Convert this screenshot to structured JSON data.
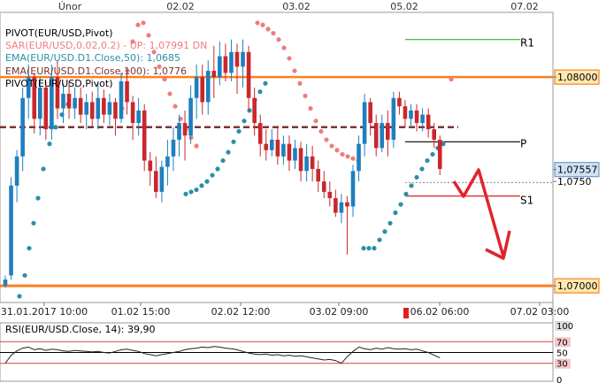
{
  "chart_data": {
    "type": "candlestick",
    "instrument": "EUR/USD",
    "colors": {
      "bull": "#1f7fbe",
      "bear": "#c8282d",
      "sar": "#ef7d7d",
      "ema50": "#2b8fa8",
      "ema100": "#7a3535",
      "level_orange": "#ff7f1f",
      "r1": "#2fb52f",
      "s1": "#d92020",
      "arrow": "#e0242d",
      "price_box": "#ffe8b0",
      "current_box": "#cfe3f5"
    },
    "top_axis": {
      "labels": [
        "Únor",
        "02.02",
        "03.02",
        "05.02",
        "07.02"
      ],
      "label_x": [
        79,
        204,
        335,
        457,
        593
      ]
    },
    "x_axis": {
      "labels": [
        "31.01.2017 10:00",
        "01.02 15:00",
        "02.02 12:00",
        "03.02 09:00",
        "06.02 06:00",
        "07.02 03:00"
      ],
      "label_x": [
        50,
        159,
        272,
        383,
        497,
        610
      ]
    },
    "y_axis": {
      "range": [
        1.0692,
        1.0831
      ]
    },
    "price_tags": [
      {
        "label": "1,08000",
        "price": 1.08,
        "style": "orange"
      },
      {
        "label": "1,07557",
        "price": 1.07557,
        "style": "current"
      },
      {
        "label": "1,0750",
        "price": 1.075,
        "style": "plain"
      },
      {
        "label": "1,07000",
        "price": 1.07,
        "style": "orange"
      }
    ],
    "levels": {
      "orange_upper": 1.08,
      "orange_lower": 1.07,
      "ema100": 1.0776,
      "pivot": 1.0769,
      "r1": 1.0818,
      "s1": 1.0743,
      "current_dashed": 1.07495
    },
    "level_labels": {
      "r1": "R1",
      "pivot": "P",
      "s1": "S1"
    },
    "candles": [
      [
        1.07,
        1.0703,
        1.0699,
        1.0705
      ],
      [
        1.0705,
        1.0748,
        1.0703,
        1.0752
      ],
      [
        1.0748,
        1.0762,
        1.074,
        1.0765
      ],
      [
        1.0762,
        1.079,
        1.0755,
        1.0795
      ],
      [
        1.079,
        1.08,
        1.078,
        1.0806
      ],
      [
        1.08,
        1.078,
        1.0773,
        1.0802
      ],
      [
        1.078,
        1.0795,
        1.0772,
        1.08
      ],
      [
        1.0795,
        1.0775,
        1.077,
        1.0798
      ],
      [
        1.0775,
        1.08,
        1.077,
        1.0806
      ],
      [
        1.08,
        1.0785,
        1.078,
        1.0808
      ],
      [
        1.0785,
        1.0792,
        1.0778,
        1.0797
      ],
      [
        1.0792,
        1.0785,
        1.078,
        1.0798
      ],
      [
        1.0785,
        1.079,
        1.078,
        1.0795
      ],
      [
        1.079,
        1.0782,
        1.0778,
        1.0795
      ],
      [
        1.0782,
        1.0788,
        1.0775,
        1.0792
      ],
      [
        1.0788,
        1.078,
        1.0776,
        1.0793
      ],
      [
        1.078,
        1.079,
        1.0775,
        1.0797
      ],
      [
        1.079,
        1.0782,
        1.0778,
        1.0794
      ],
      [
        1.0782,
        1.0788,
        1.0777,
        1.0792
      ],
      [
        1.0788,
        1.078,
        1.0772,
        1.079
      ],
      [
        1.078,
        1.0798,
        1.0778,
        1.0802
      ],
      [
        1.0798,
        1.0788,
        1.0782,
        1.0802
      ],
      [
        1.0788,
        1.0778,
        1.077,
        1.0791
      ],
      [
        1.0778,
        1.0784,
        1.0772,
        1.079
      ],
      [
        1.0784,
        1.076,
        1.0755,
        1.0787
      ],
      [
        1.076,
        1.0755,
        1.0748,
        1.0764
      ],
      [
        1.0755,
        1.0745,
        1.0742,
        1.0762
      ],
      [
        1.0745,
        1.0757,
        1.074,
        1.076
      ],
      [
        1.0757,
        1.0762,
        1.0748,
        1.077
      ],
      [
        1.0762,
        1.077,
        1.0755,
        1.0776
      ],
      [
        1.077,
        1.0778,
        1.0762,
        1.0782
      ],
      [
        1.0778,
        1.0772,
        1.076,
        1.0784
      ],
      [
        1.0772,
        1.079,
        1.0768,
        1.0796
      ],
      [
        1.079,
        1.08,
        1.078,
        1.0806
      ],
      [
        1.08,
        1.0788,
        1.0782,
        1.0806
      ],
      [
        1.0788,
        1.0803,
        1.0782,
        1.0808
      ],
      [
        1.0803,
        1.08,
        1.079,
        1.0815
      ],
      [
        1.08,
        1.081,
        1.0796,
        1.0817
      ],
      [
        1.081,
        1.0802,
        1.0798,
        1.0816
      ],
      [
        1.0802,
        1.0812,
        1.0798,
        1.0818
      ],
      [
        1.0812,
        1.0805,
        1.0792,
        1.0816
      ],
      [
        1.0805,
        1.0812,
        1.0795,
        1.0818
      ],
      [
        1.0812,
        1.079,
        1.0784,
        1.0815
      ],
      [
        1.079,
        1.0778,
        1.0772,
        1.0795
      ],
      [
        1.0778,
        1.0768,
        1.0762,
        1.0782
      ],
      [
        1.0768,
        1.0765,
        1.076,
        1.0775
      ],
      [
        1.0765,
        1.077,
        1.0762,
        1.0775
      ],
      [
        1.077,
        1.0762,
        1.0758,
        1.0776
      ],
      [
        1.0762,
        1.0768,
        1.0758,
        1.0772
      ],
      [
        1.0768,
        1.076,
        1.0755,
        1.0772
      ],
      [
        1.076,
        1.0766,
        1.0756,
        1.077
      ],
      [
        1.0766,
        1.0755,
        1.075,
        1.0769
      ],
      [
        1.0755,
        1.0762,
        1.075,
        1.0768
      ],
      [
        1.0762,
        1.0756,
        1.075,
        1.0767
      ],
      [
        1.0756,
        1.075,
        1.0745,
        1.076
      ],
      [
        1.075,
        1.0745,
        1.0742,
        1.0755
      ],
      [
        1.0745,
        1.0742,
        1.0738,
        1.075
      ],
      [
        1.0742,
        1.0735,
        1.0733,
        1.0746
      ],
      [
        1.0735,
        1.074,
        1.073,
        1.0744
      ],
      [
        1.074,
        1.0738,
        1.0715,
        1.0743
      ],
      [
        1.0738,
        1.0755,
        1.0733,
        1.0758
      ],
      [
        1.0755,
        1.0768,
        1.075,
        1.0772
      ],
      [
        1.0768,
        1.0788,
        1.0762,
        1.0792
      ],
      [
        1.0788,
        1.0778,
        1.0772,
        1.079
      ],
      [
        1.0778,
        1.0766,
        1.0762,
        1.0782
      ],
      [
        1.0766,
        1.0778,
        1.0764,
        1.0782
      ],
      [
        1.0778,
        1.077,
        1.0762,
        1.0784
      ],
      [
        1.077,
        1.079,
        1.0766,
        1.0793
      ],
      [
        1.079,
        1.0786,
        1.0782,
        1.0793
      ],
      [
        1.0786,
        1.078,
        1.0776,
        1.0789
      ],
      [
        1.078,
        1.0784,
        1.0776,
        1.0787
      ],
      [
        1.0784,
        1.0778,
        1.0774,
        1.0787
      ],
      [
        1.0778,
        1.0782,
        1.0774,
        1.0785
      ],
      [
        1.0782,
        1.0775,
        1.0771,
        1.0785
      ],
      [
        1.0775,
        1.077,
        1.0766,
        1.0778
      ],
      [
        1.077,
        1.0756,
        1.0753,
        1.0772
      ]
    ],
    "sar_points": [
      [
        138,
        1.0785
      ],
      [
        144,
        1.0803
      ],
      [
        150,
        1.0817
      ],
      [
        156,
        1.0825
      ],
      [
        162,
        1.0826
      ],
      [
        168,
        1.082
      ],
      [
        174,
        1.0812
      ],
      [
        180,
        1.0805
      ],
      [
        186,
        1.0799
      ],
      [
        192,
        1.0792
      ],
      [
        198,
        1.0786
      ],
      [
        204,
        1.078
      ],
      [
        210,
        1.0775
      ],
      [
        216,
        1.0771
      ],
      [
        222,
        1.0767
      ],
      [
        291,
        1.0826
      ],
      [
        297,
        1.0825
      ],
      [
        303,
        1.0823
      ],
      [
        309,
        1.0821
      ],
      [
        315,
        1.0818
      ],
      [
        321,
        1.0814
      ],
      [
        327,
        1.0809
      ],
      [
        333,
        1.0803
      ],
      [
        339,
        1.0797
      ],
      [
        345,
        1.0791
      ],
      [
        351,
        1.0785
      ],
      [
        357,
        1.0779
      ],
      [
        363,
        1.0774
      ],
      [
        369,
        1.077
      ],
      [
        375,
        1.0767
      ],
      [
        381,
        1.0765
      ],
      [
        387,
        1.0763
      ],
      [
        393,
        1.0762
      ],
      [
        399,
        1.0761
      ],
      [
        405,
        1.076
      ],
      [
        510,
        1.0799
      ]
    ],
    "ema50_points": [
      [
        22,
        1.0695
      ],
      [
        28,
        1.0705
      ],
      [
        33,
        1.0718
      ],
      [
        38,
        1.073
      ],
      [
        43,
        1.0742
      ],
      [
        49,
        1.0756
      ],
      [
        56,
        1.0768
      ],
      [
        63,
        1.0776
      ],
      [
        70,
        1.0782
      ],
      [
        77,
        1.0787
      ],
      [
        210,
        1.0744
      ],
      [
        216,
        1.0745
      ],
      [
        222,
        1.0746
      ],
      [
        228,
        1.0748
      ],
      [
        234,
        1.075
      ],
      [
        240,
        1.0753
      ],
      [
        246,
        1.0756
      ],
      [
        252,
        1.076
      ],
      [
        258,
        1.0764
      ],
      [
        264,
        1.0769
      ],
      [
        270,
        1.0774
      ],
      [
        276,
        1.0779
      ],
      [
        282,
        1.0784
      ],
      [
        288,
        1.0789
      ],
      [
        294,
        1.0793
      ],
      [
        300,
        1.0797
      ],
      [
        411,
        1.0718
      ],
      [
        417,
        1.0718
      ],
      [
        423,
        1.0718
      ],
      [
        429,
        1.0722
      ],
      [
        435,
        1.0726
      ],
      [
        441,
        1.073
      ],
      [
        447,
        1.0735
      ],
      [
        453,
        1.0739
      ],
      [
        459,
        1.0744
      ],
      [
        465,
        1.0748
      ],
      [
        471,
        1.0752
      ],
      [
        477,
        1.0756
      ],
      [
        483,
        1.076
      ],
      [
        489,
        1.0763
      ],
      [
        495,
        1.0766
      ],
      [
        501,
        1.0768
      ]
    ],
    "rsi": {
      "label": "RSI(EUR/USD.Close, 14): 39,90",
      "value": 39.9,
      "levels": [
        70,
        50,
        30
      ],
      "axis_labels": [
        "100",
        "70",
        "50",
        "30",
        "0"
      ],
      "line": [
        30,
        45,
        53,
        58,
        60,
        55,
        57,
        54,
        56,
        55,
        53,
        52,
        54,
        53,
        52,
        51,
        52,
        50,
        49,
        52,
        55,
        56,
        54,
        52,
        48,
        46,
        44,
        46,
        48,
        50,
        52,
        55,
        57,
        58,
        60,
        59,
        61,
        60,
        58,
        57,
        55,
        52,
        49,
        47,
        46,
        47,
        45,
        46,
        44,
        45,
        43,
        44,
        42,
        40,
        38,
        36,
        37,
        35,
        30,
        42,
        52,
        60,
        57,
        55,
        58,
        56,
        59,
        57,
        56,
        57,
        55,
        56,
        53,
        50,
        45,
        40
      ]
    }
  },
  "legend": [
    {
      "text": "PIVOT(EUR/USD,Pivot)",
      "color": "#000000"
    },
    {
      "text": "SAR(EUR/USD,0.02,0.2)  -  UP: 1,07991   DN",
      "color": "#ef7d7d"
    },
    {
      "text": "EMA(EUR/USD.D1.Close,50): 1,0685",
      "color": "#2b8fa8"
    },
    {
      "text": "EMA(EUR/USD.D1.Close,100): 1,0776",
      "color": "#7a3535"
    },
    {
      "text": "PIVOT(EUR/USD,Pivot)",
      "color": "#000000"
    }
  ]
}
